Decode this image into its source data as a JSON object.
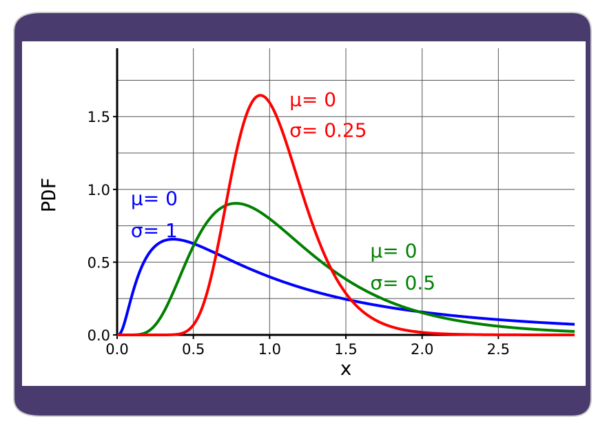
{
  "colors": {
    "frame_fill": "#4a3b6e",
    "plot_background": "#ffffff",
    "grid": "#555555",
    "axis": "#000000",
    "blue": "#0000ff",
    "green": "#008000",
    "red": "#ff0000"
  },
  "chart_data": {
    "type": "line",
    "title": "",
    "xlabel": "x",
    "ylabel": "PDF",
    "xlim": [
      0,
      3
    ],
    "ylim": [
      0,
      1.97
    ],
    "x_ticks": [
      0.0,
      0.5,
      1.0,
      1.5,
      2.0,
      2.5
    ],
    "x_tick_labels": [
      "0.0",
      "0.5",
      "1.0",
      "1.5",
      "2.0",
      "2.5"
    ],
    "y_ticks": [
      0.0,
      0.5,
      1.0,
      1.5
    ],
    "y_tick_labels": [
      "0.0",
      "0.5",
      "1.0",
      "1.5"
    ],
    "grid": true,
    "legend": "none",
    "series": [
      {
        "color": "blue",
        "distribution": "lognormal",
        "mu": 0,
        "sigma": 1,
        "annotation": {
          "line1": "μ= 0",
          "line2": "σ= 1",
          "x": 0.09,
          "y1": 0.94,
          "y2": 0.72
        }
      },
      {
        "color": "green",
        "distribution": "lognormal",
        "mu": 0,
        "sigma": 0.5,
        "annotation": {
          "line1": "μ= 0",
          "line2": "σ= 0.5",
          "x": 1.66,
          "y1": 0.58,
          "y2": 0.36
        }
      },
      {
        "color": "red",
        "distribution": "lognormal",
        "mu": 0,
        "sigma": 0.25,
        "annotation": {
          "line1": "μ= 0",
          "line2": "σ= 0.25",
          "x": 1.13,
          "y1": 1.62,
          "y2": 1.41
        }
      }
    ]
  }
}
